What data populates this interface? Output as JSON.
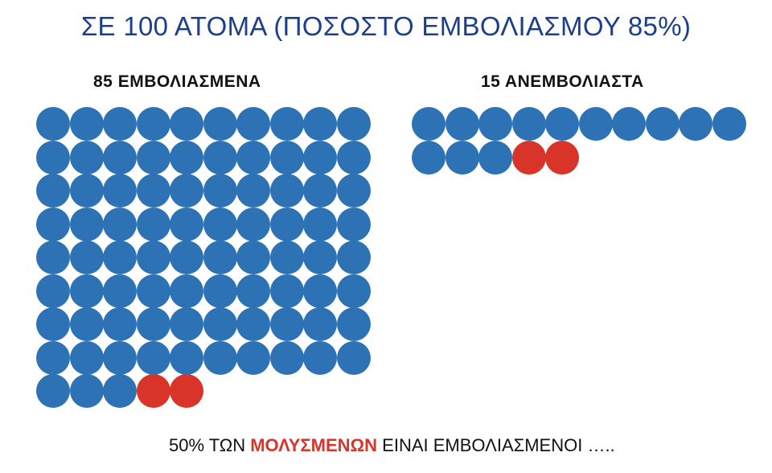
{
  "title": "ΣΕ 100 ΑΤΟΜΑ (ΠΟΣΟΣΤΟ ΕΜΒΟΛΙΑΣΜΟΥ 85%)",
  "colors": {
    "title": "#1c3f8c",
    "healthy": "#2e72b6",
    "infected": "#d8342a",
    "text": "#111111"
  },
  "groups": {
    "vaccinated": {
      "label": "85 ΕΜΒΟΛΙΑΣΜΕΝΑ",
      "total": 85,
      "infected": 2,
      "per_row": 10
    },
    "unvaccinated": {
      "label": "15 ΑΝΕΜΒΟΛΙΑΣΤΑ",
      "total": 15,
      "infected": 2,
      "per_row": 10
    }
  },
  "footer": {
    "prefix": "50% ΤΩΝ ",
    "highlight": "ΜΟΛΥΣΜΕΝΩΝ",
    "suffix": " ΕΙΝΑΙ ΕΜΒΟΛΙΑΣΜΕΝΟΙ ….."
  }
}
